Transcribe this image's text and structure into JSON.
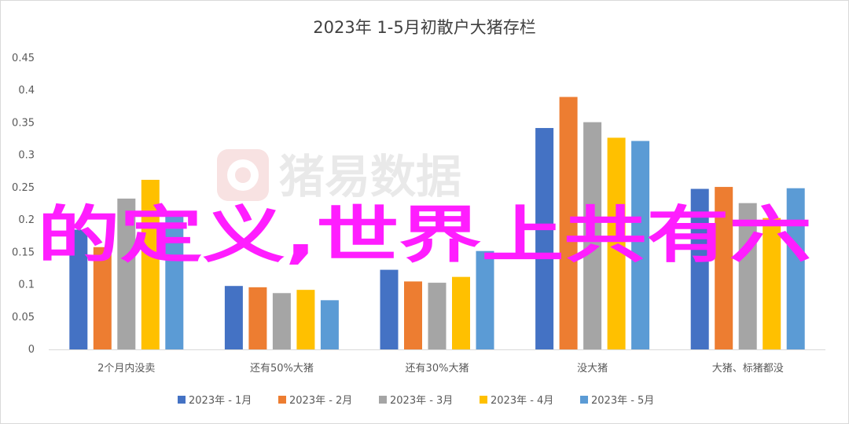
{
  "chart_data": {
    "type": "bar",
    "title": "2023年 1-5月初散户大猪存栏",
    "categories": [
      "2个月内没卖",
      "还有50%大猪",
      "还有30%大猪",
      "没大猪",
      "大猪、标猪都没"
    ],
    "series": [
      {
        "name": "2023年 - 1月",
        "values": [
          0.185,
          0.098,
          0.123,
          0.342,
          0.248
        ]
      },
      {
        "name": "2023年 - 2月",
        "values": [
          0.158,
          0.096,
          0.105,
          0.39,
          0.251
        ]
      },
      {
        "name": "2023年 - 3月",
        "values": [
          0.233,
          0.087,
          0.103,
          0.351,
          0.226
        ]
      },
      {
        "name": "2023年 - 4月",
        "values": [
          0.262,
          0.092,
          0.112,
          0.327,
          0.203
        ]
      },
      {
        "name": "2023年 - 5月",
        "values": [
          0.205,
          0.076,
          0.152,
          0.322,
          0.249
        ]
      }
    ],
    "ylim": [
      0,
      0.45
    ],
    "yticks": [
      "0",
      "0.05",
      "0.1",
      "0.15",
      "0.2",
      "0.25",
      "0.3",
      "0.35",
      "0.4",
      "0.45"
    ],
    "grid": false,
    "legend_position": "bottom",
    "colors": [
      "#4472c4",
      "#ed7d31",
      "#a5a5a5",
      "#ffc000",
      "#5b9bd5"
    ]
  },
  "watermark": {
    "text": "猪易数据"
  },
  "overlay_text": "的定义,世界上共有六"
}
